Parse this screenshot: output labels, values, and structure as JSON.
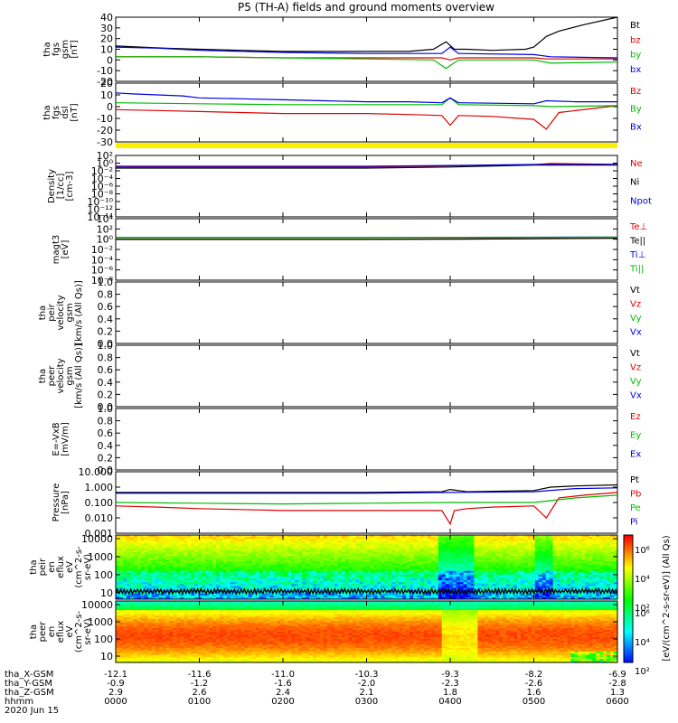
{
  "title": "P5 (TH-A) fields and ground moments overview",
  "chart_data": {
    "type": "line",
    "x_ticks": [
      "0000",
      "0100",
      "0200",
      "0300",
      "0400",
      "0500",
      "0600"
    ],
    "x_range": [
      "0000",
      "0600"
    ],
    "ephemeris": {
      "rows": [
        {
          "label": "tha_X-GSM",
          "values": [
            "-12.1",
            "-11.6",
            "-11.0",
            "-10.3",
            "-9.3",
            "-8.2",
            "-6.9"
          ]
        },
        {
          "label": "tha_Y-GSM",
          "values": [
            "-0.9",
            "-1.2",
            "-1.6",
            "-2.0",
            "-2.3",
            "-2.6",
            "-2.8"
          ]
        },
        {
          "label": "tha_Z-GSM",
          "values": [
            "2.9",
            "2.6",
            "2.4",
            "2.1",
            "1.8",
            "1.6",
            "1.3"
          ]
        },
        {
          "label": "hhmm",
          "values": [
            "0000",
            "0100",
            "0200",
            "0300",
            "0400",
            "0500",
            "0600"
          ]
        }
      ],
      "date": "2020 Jun 15"
    },
    "panels": [
      {
        "id": "fgs-gsm",
        "ylabel": [
          "tha",
          "fgs",
          "gsm",
          "[nT]"
        ],
        "yticks": [
          "40",
          "30",
          "20",
          "10",
          "0",
          "-10",
          "-20"
        ],
        "ylim": [
          -20,
          40
        ],
        "legend": [
          {
            "label": "Bt",
            "color": "#000000"
          },
          {
            "label": "bz",
            "color": "#dd0000"
          },
          {
            "label": "by",
            "color": "#00bb00"
          },
          {
            "label": "bx",
            "color": "#0000dd"
          }
        ],
        "series": [
          {
            "name": "Bt",
            "color": "#000000",
            "x": [
              0,
              0.3,
              0.6,
              1.0,
              1.5,
              2.0,
              2.5,
              3.0,
              3.5,
              3.8,
              3.95,
              4.05,
              4.2,
              4.5,
              4.9,
              5.0,
              5.15,
              5.3,
              5.6,
              6.0
            ],
            "y": [
              13,
              12,
              11,
              10,
              9,
              8,
              8,
              8,
              8,
              10,
              17,
              10,
              10,
              9,
              10,
              12,
              22,
              27,
              33,
              40
            ]
          },
          {
            "name": "bz",
            "color": "#dd0000",
            "x": [
              0,
              1,
              2,
              3,
              3.9,
              4.0,
              4.1,
              5.0,
              5.15,
              6.0
            ],
            "y": [
              3,
              3,
              2,
              2,
              2,
              0,
              2,
              2,
              1,
              1
            ]
          },
          {
            "name": "by",
            "color": "#00bb00",
            "x": [
              0,
              1,
              2,
              3,
              3.8,
              3.95,
              4.1,
              5.0,
              5.2,
              6.0
            ],
            "y": [
              3,
              3,
              2,
              1,
              0,
              -8,
              0,
              0,
              -3,
              -2
            ]
          },
          {
            "name": "bx",
            "color": "#0000dd",
            "x": [
              0,
              0.5,
              1,
              2,
              3,
              3.9,
              4.0,
              4.1,
              5.0,
              5.2,
              6.0
            ],
            "y": [
              12,
              11,
              9,
              7,
              6,
              6,
              12,
              6,
              5,
              3,
              2
            ]
          }
        ]
      },
      {
        "id": "fgs-dsl",
        "ylabel": [
          "tha",
          "fgs",
          "dsl",
          "[nT]"
        ],
        "yticks": [
          "20",
          "10",
          "0",
          "-10",
          "-20",
          "-30"
        ],
        "ylim": [
          -35,
          25
        ],
        "legend": [
          {
            "label": "Bz",
            "color": "#dd0000"
          },
          {
            "label": "By",
            "color": "#00bb00"
          },
          {
            "label": "Bx",
            "color": "#0000dd"
          }
        ],
        "series": [
          {
            "name": "Bz",
            "color": "#dd0000",
            "x": [
              0,
              0.5,
              1.0,
              1.5,
              2.0,
              2.5,
              3.0,
              3.5,
              3.9,
              4.0,
              4.1,
              4.5,
              5.0,
              5.15,
              5.3,
              6.0
            ],
            "y": [
              -2,
              -3,
              -4,
              -5,
              -6,
              -6,
              -6,
              -7,
              -8,
              -18,
              -8,
              -9,
              -12,
              -22,
              -5,
              2
            ]
          },
          {
            "name": "By",
            "color": "#00bb00",
            "x": [
              0,
              1,
              2,
              3,
              3.9,
              4.0,
              4.1,
              5.0,
              5.2,
              6.0
            ],
            "y": [
              5,
              4,
              3,
              3,
              3,
              10,
              3,
              2,
              1,
              2
            ]
          },
          {
            "name": "Bx",
            "color": "#0000dd",
            "x": [
              0,
              0.2,
              0.5,
              0.8,
              1.0,
              1.5,
              2.0,
              2.5,
              3.0,
              3.5,
              3.9,
              4.0,
              4.1,
              5.0,
              5.15,
              5.5,
              6.0
            ],
            "y": [
              15,
              14,
              13,
              12,
              10,
              9,
              8,
              7,
              6,
              6,
              5,
              10,
              5,
              4,
              7,
              6,
              6
            ]
          }
        ]
      },
      {
        "id": "density",
        "ylabel": [
          "Density",
          "[1/cc]",
          "[cm-3]"
        ],
        "yticks": [
          "10²",
          "10⁰",
          "10⁻²",
          "10⁻⁴",
          "10⁻⁶",
          "10⁻⁸",
          "10⁻¹⁰",
          "10⁻¹²",
          "10⁻¹⁴"
        ],
        "ylim": [
          -14,
          2
        ],
        "log": true,
        "legend": [
          {
            "label": "Ne",
            "color": "#dd0000"
          },
          {
            "label": "Ni",
            "color": "#000000"
          },
          {
            "label": "Npot",
            "color": "#0000dd"
          }
        ],
        "series": [
          {
            "name": "Ne",
            "color": "#dd0000",
            "x": [
              0,
              1,
              2,
              3,
              4,
              5,
              5.2,
              6
            ],
            "y": [
              0.1,
              0.1,
              0.1,
              0.1,
              0.2,
              0.4,
              0.8,
              0.5
            ]
          },
          {
            "name": "Ni",
            "color": "#000000",
            "x": [
              0,
              1,
              2,
              3,
              4,
              5,
              6
            ],
            "y": [
              0.05,
              0.05,
              0.05,
              0.05,
              0.1,
              0.3,
              0.3
            ]
          },
          {
            "name": "Npot",
            "color": "#0000dd",
            "x": [
              0,
              1,
              2,
              3,
              4,
              5,
              6
            ],
            "y": [
              0.15,
              0.15,
              0.15,
              0.15,
              0.25,
              0.45,
              0.45
            ]
          }
        ]
      },
      {
        "id": "temperature",
        "ylabel": [
          "magt3",
          "[eV]"
        ],
        "yticks": [
          "10⁴",
          "10²",
          "10⁰",
          "10⁻²",
          "10⁻⁴",
          "10⁻⁶",
          "10⁻⁸"
        ],
        "ylim": [
          -8,
          4
        ],
        "log": true,
        "legend": [
          {
            "label": "Te⊥",
            "color": "#dd0000"
          },
          {
            "label": "Te||",
            "color": "#000000"
          },
          {
            "label": "Ti⊥",
            "color": "#0000dd"
          },
          {
            "label": "Ti||",
            "color": "#00bb00"
          }
        ],
        "series": [
          {
            "name": "Te⊥",
            "color": "#dd0000",
            "x": [
              0,
              1,
              2,
              3,
              4,
              5,
              5.2,
              6
            ],
            "y": [
              1.0,
              1.0,
              1.0,
              1.0,
              1.1,
              1.3,
              1.6,
              1.7
            ]
          },
          {
            "name": "Te||",
            "color": "#000000",
            "x": [
              0,
              1,
              2,
              3,
              4,
              5,
              6
            ],
            "y": [
              0.9,
              0.9,
              0.9,
              0.9,
              1.0,
              1.2,
              1.5
            ]
          },
          {
            "name": "Ti⊥",
            "color": "#0000dd",
            "x": [
              0,
              1,
              2,
              3,
              4,
              5,
              6
            ],
            "y": [
              2.2,
              2.2,
              2.2,
              2.2,
              2.3,
              2.4,
              2.6
            ]
          },
          {
            "name": "Ti||",
            "color": "#00bb00",
            "x": [
              0,
              1,
              2,
              3,
              4,
              5,
              6
            ],
            "y": [
              2.0,
              2.0,
              2.0,
              2.0,
              2.1,
              2.2,
              2.4
            ]
          }
        ]
      },
      {
        "id": "ion-velocity",
        "ylabel": [
          "tha",
          "peir",
          "velocity",
          "gsm",
          "[km/s (All Qs)]"
        ],
        "yticks": [
          "1.0",
          "0.8",
          "0.6",
          "0.4",
          "0.2",
          "0.0"
        ],
        "ylim": [
          0,
          1
        ],
        "legend": [
          {
            "label": "Vt",
            "color": "#000000"
          },
          {
            "label": "Vz",
            "color": "#dd0000"
          },
          {
            "label": "Vy",
            "color": "#00bb00"
          },
          {
            "label": "Vx",
            "color": "#0000dd"
          }
        ],
        "series": []
      },
      {
        "id": "electron-velocity",
        "ylabel": [
          "tha",
          "peer",
          "velocity",
          "gsm",
          "[km/s (All Qs)]"
        ],
        "yticks": [
          "1.0",
          "0.8",
          "0.6",
          "0.4",
          "0.2",
          "0.0"
        ],
        "ylim": [
          0,
          1
        ],
        "legend": [
          {
            "label": "Vt",
            "color": "#000000"
          },
          {
            "label": "Vz",
            "color": "#dd0000"
          },
          {
            "label": "Vy",
            "color": "#00bb00"
          },
          {
            "label": "Vx",
            "color": "#0000dd"
          }
        ],
        "series": []
      },
      {
        "id": "e-field",
        "ylabel": [
          "E=-VxB",
          "[mV/m]"
        ],
        "yticks": [
          "1.0",
          "0.8",
          "0.6",
          "0.4",
          "0.2",
          "0.0"
        ],
        "ylim": [
          0,
          1
        ],
        "legend": [
          {
            "label": "Ez",
            "color": "#dd0000"
          },
          {
            "label": "Ey",
            "color": "#00bb00"
          },
          {
            "label": "Ex",
            "color": "#0000dd"
          }
        ],
        "series": []
      },
      {
        "id": "pressure",
        "ylabel": [
          "Pressure",
          "[nPa]"
        ],
        "yticks": [
          "10.000",
          "1.000",
          "0.100",
          "0.010",
          "0.001"
        ],
        "ylim": [
          -3,
          1
        ],
        "log": true,
        "legend": [
          {
            "label": "Pt",
            "color": "#000000"
          },
          {
            "label": "Pb",
            "color": "#dd0000"
          },
          {
            "label": "Pe",
            "color": "#00bb00"
          },
          {
            "label": "Pi",
            "color": "#0000dd"
          }
        ],
        "series": [
          {
            "name": "Pt",
            "color": "#000000",
            "x": [
              0,
              1,
              2,
              3,
              3.9,
              4.0,
              4.2,
              5.0,
              5.2,
              5.5,
              6.0
            ],
            "y": [
              0.45,
              0.45,
              0.45,
              0.45,
              0.5,
              0.7,
              0.5,
              0.6,
              1.0,
              1.2,
              1.4
            ]
          },
          {
            "name": "Pb",
            "color": "#dd0000",
            "x": [
              0,
              0.5,
              1,
              1.5,
              2,
              2.5,
              3,
              3.5,
              3.9,
              4.0,
              4.05,
              4.2,
              4.5,
              5.0,
              5.15,
              5.3,
              5.6,
              6.0
            ],
            "y": [
              0.06,
              0.05,
              0.04,
              0.035,
              0.03,
              0.03,
              0.03,
              0.03,
              0.03,
              0.004,
              0.03,
              0.04,
              0.05,
              0.06,
              0.01,
              0.2,
              0.3,
              0.45
            ]
          },
          {
            "name": "Pe",
            "color": "#00bb00",
            "x": [
              0,
              1,
              2,
              3,
              4,
              5,
              5.5,
              6
            ],
            "y": [
              0.1,
              0.09,
              0.08,
              0.09,
              0.1,
              0.1,
              0.2,
              0.3
            ]
          },
          {
            "name": "Pi",
            "color": "#0000dd",
            "x": [
              0,
              1,
              2,
              3,
              4,
              5,
              5.5,
              6
            ],
            "y": [
              0.4,
              0.4,
              0.4,
              0.4,
              0.45,
              0.5,
              0.8,
              0.9
            ]
          }
        ]
      },
      {
        "id": "ion-spectrogram",
        "type": "heatmap",
        "ylabel": [
          "tha",
          "peir",
          "en",
          "eflux",
          "eV",
          "(cm^2-s-",
          "sr-eV)"
        ],
        "yticks": [
          "10000",
          "1000",
          "100",
          "10"
        ],
        "ylim": [
          1,
          4.3
        ],
        "log": true
      },
      {
        "id": "electron-spectrogram",
        "type": "heatmap",
        "ylabel": [
          "tha",
          "peer",
          "en",
          "eflux",
          "eV",
          "(cm^2-s-",
          "sr-eV)"
        ],
        "yticks": [
          "10000",
          "1000",
          "100",
          "10"
        ],
        "ylim": [
          1,
          4.3
        ],
        "log": true
      }
    ],
    "colorbar": {
      "label": "[eV/(cm^2-s-sr-eV)] (All Qs)",
      "ticks": [
        "10⁶",
        "10⁴",
        "10²"
      ]
    }
  }
}
